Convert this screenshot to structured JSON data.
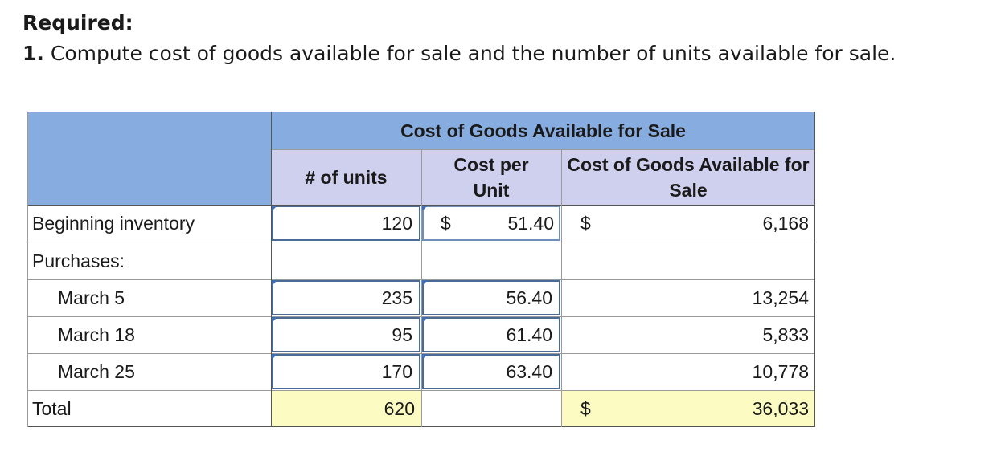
{
  "heading": {
    "title": "Required:",
    "number": "1.",
    "text": "Compute cost of goods available for sale and the number of units available for sale."
  },
  "table": {
    "group_header": "Cost of Goods Available for Sale",
    "col_units": "# of units",
    "col_cost_per_unit": "Cost per Unit",
    "col_cost_available": "Cost of Goods Available for Sale",
    "rows": [
      {
        "label": "Beginning inventory",
        "units": "120",
        "cost_dollar": "$",
        "cost_per_unit": "51.40",
        "total_dollar": "$",
        "total": "6,168"
      },
      {
        "label": "Purchases:",
        "units": "",
        "cost_dollar": "",
        "cost_per_unit": "",
        "total_dollar": "",
        "total": ""
      },
      {
        "label": "March 5",
        "units": "235",
        "cost_dollar": "",
        "cost_per_unit": "56.40",
        "total_dollar": "",
        "total": "13,254"
      },
      {
        "label": "March 18",
        "units": "95",
        "cost_dollar": "",
        "cost_per_unit": "61.40",
        "total_dollar": "",
        "total": "5,833"
      },
      {
        "label": "March 25",
        "units": "170",
        "cost_dollar": "",
        "cost_per_unit": "63.40",
        "total_dollar": "",
        "total": "10,778"
      },
      {
        "label": "Total",
        "units": "620",
        "cost_dollar": "",
        "cost_per_unit": "",
        "total_dollar": "$",
        "total": "36,033"
      }
    ]
  },
  "colors": {
    "header_blue": "#86ace0",
    "header_lavender": "#cfd0ee",
    "total_highlight": "#fcfcc2",
    "input_border": "#4a6b96"
  }
}
